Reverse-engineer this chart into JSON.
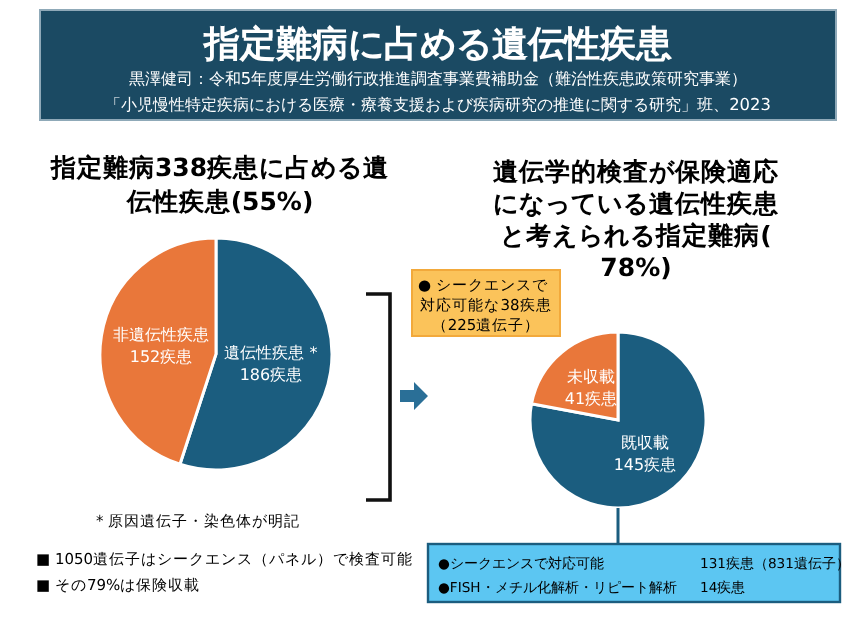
{
  "chart_data": [
    {
      "type": "other",
      "title": "指定難病に占める遺伝性疾患",
      "subtitle": "黒澤健司：令和5年度厚生労働行政推進調査事業費補助金（難治性疾患政策研究事業）",
      "annotations": [
        "「小児慢性特定疾病における医療・療養支援および疾病研究の推進に関する研究」班、2023"
      ]
    },
    {
      "type": "pie",
      "title": "指定難病338疾患に占める遺伝性疾患(55%)",
      "categories": [
        "遺伝性疾患 *",
        "非遺伝性疾患"
      ],
      "values": [
        186,
        152
      ],
      "colors": [
        "#1b5d7f",
        "#e9773a"
      ],
      "value_labels": [
        "186疾患",
        "152疾患"
      ],
      "annotations": [
        "* 原因遺伝子・染色体が明記",
        "■ 1050遺伝子はシークエンス（パネル）で検査可能",
        "■ その79%は保険収載"
      ]
    },
    {
      "type": "pie",
      "title": "遺伝学的検査が保険適応になっている遺伝性疾患と考えられる指定難病(78%)",
      "categories": [
        "既収載",
        "未収載"
      ],
      "values": [
        145,
        41
      ],
      "colors": [
        "#1b5d7f",
        "#e9773a"
      ],
      "value_labels": [
        "145疾患",
        "41疾患"
      ],
      "annotations": [
        "● シークエンスで",
        "対応可能な38疾患",
        "（225遺伝子）",
        "●シークエンスで対応可能",
        "131疾患（831遺伝子）",
        "●FISH・メチル化解析・リピート解析",
        "14疾患"
      ]
    }
  ]
}
